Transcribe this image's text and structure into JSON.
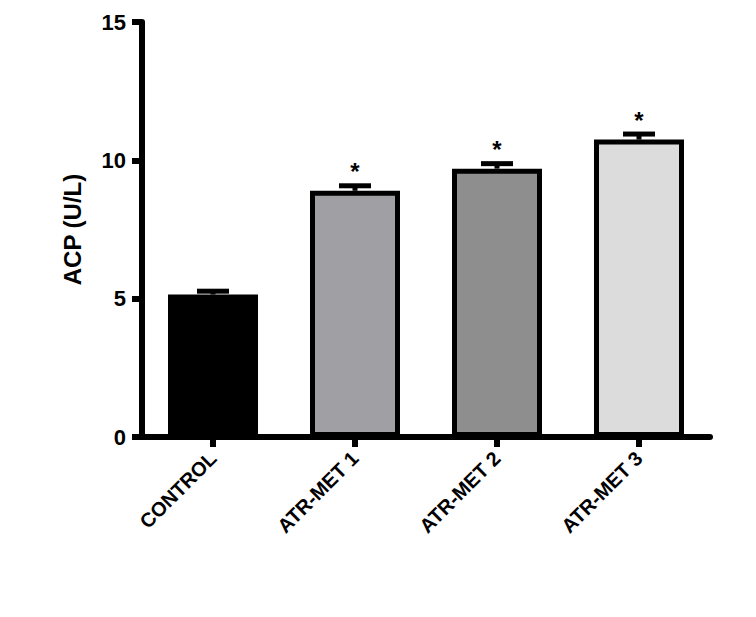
{
  "chart_data": {
    "type": "bar",
    "y_label": "ACP (U/L)",
    "categories": [
      "CONTROL",
      "ATR-MET 1",
      "ATR-MET 2",
      "ATR-MET 3"
    ],
    "values": [
      5.15,
      8.9,
      9.7,
      10.75
    ],
    "errors": [
      0.12,
      0.18,
      0.18,
      0.2
    ],
    "significance": [
      null,
      "*",
      "*",
      "*"
    ],
    "colors": [
      "#000000",
      "#a0a0a4",
      "#8e8e8e",
      "#dcdcdc"
    ],
    "ylim": [
      0,
      15
    ],
    "yticks": [
      0,
      5,
      10,
      15
    ],
    "grid": false
  }
}
